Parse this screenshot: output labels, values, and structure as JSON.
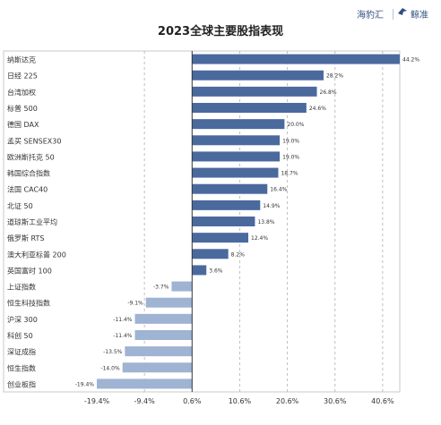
{
  "header": {
    "brand_left": "海豹汇",
    "brand_right": "鲸准"
  },
  "chart_data": {
    "type": "bar",
    "orientation": "horizontal",
    "title": "2023全球主要股指表现",
    "categories": [
      "纳斯达克",
      "日经 225",
      "台湾加权",
      "标普 500",
      "德国 DAX",
      "孟买 SENSEX30",
      "欧洲斯托克 50",
      "韩国综合指数",
      "法国 CAC40",
      "北证 50",
      "道琼斯工业平均",
      "俄罗斯 RTS",
      "澳大利亚标普 200",
      "英国富时 100",
      "上证指数",
      "恒生科技指数",
      "沪深 300",
      "科创 50",
      "深证成指",
      "恒生指数",
      "创业板指"
    ],
    "values": [
      44.2,
      28.2,
      26.8,
      24.6,
      20.0,
      19.0,
      19.0,
      18.7,
      16.4,
      14.9,
      13.8,
      12.4,
      8.2,
      3.6,
      -3.7,
      -9.1,
      -11.4,
      -11.4,
      -13.5,
      -14.0,
      -19.4
    ],
    "value_labels": [
      "44.2%",
      "28.2%",
      "26.8%",
      "24.6%",
      "20.0%",
      "19.0%",
      "19.0%",
      "18.7%",
      "16.4%",
      "14.9%",
      "13.8%",
      "12.4%",
      "8.2%",
      "3.6%",
      "-3.7%",
      "-9.1%",
      "-11.4%",
      "-11.4%",
      "-13.5%",
      "-14.0%",
      "-19.4%"
    ],
    "x_ticks": [
      -19.4,
      -9.4,
      0.6,
      10.6,
      20.6,
      30.6,
      40.6
    ],
    "x_tick_labels": [
      "-19.4%",
      "-9.4%",
      "0.6%",
      "10.6%",
      "20.6%",
      "30.6%",
      "40.6%"
    ],
    "xlim": [
      -19.4,
      44.2
    ],
    "grid": "vertical dashed",
    "colors": {
      "positive": "#4a6a9e",
      "negative": "#9fb3d3"
    }
  }
}
